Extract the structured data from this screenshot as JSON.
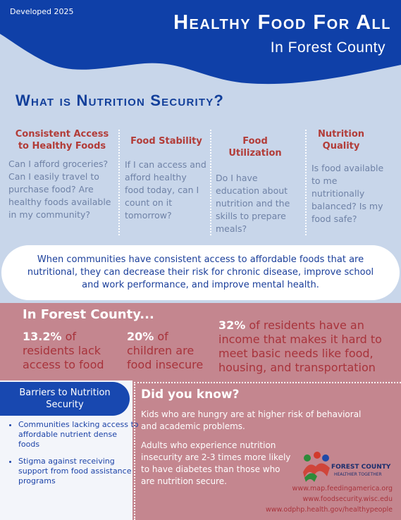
{
  "header": {
    "tag": "Developed 2025",
    "title": "Healthy Food For All",
    "subtitle": "In Forest County"
  },
  "nutrition_security": {
    "heading": "What is Nutrition Security?",
    "columns": [
      {
        "heading": "Consistent Access to Healthy Foods",
        "text": "Can I afford groceries? Can I easily travel to purchase food? Are healthy foods available in my community?"
      },
      {
        "heading": "Food Stability",
        "text": "If I can access and afford healthy food today, can I count on it tomorrow?"
      },
      {
        "heading": "Food Utilization",
        "text": "Do I have education about nutrition and the skills to prepare meals?"
      },
      {
        "heading": "Nutrition Quality",
        "text": "Is food available to me nutritionally balanced? Is my food safe?"
      }
    ]
  },
  "callout": "When communities have consistent access to affordable foods that are nutritional, they can decrease their risk for chronic disease, improve school and work performance, and improve mental health.",
  "county": {
    "heading": "In Forest County...",
    "stats": [
      {
        "value": "13.2%",
        "text": "of residents lack access to food"
      },
      {
        "value": "20%",
        "text": "of children are food insecure"
      },
      {
        "value": "32%",
        "text": "of residents have an income that makes it hard to meet basic needs like food, housing, and transportation"
      }
    ]
  },
  "barriers": {
    "heading": "Barriers to Nutrition Security",
    "items": [
      "Communities lacking access to affordable nutrient dense foods",
      "Stigma against receiving support from food assistance programs"
    ]
  },
  "did_you_know": {
    "heading": "Did you know?",
    "facts": [
      "Kids who are hungry are at higher risk of behavioral and academic problems.",
      "Adults who experience nutrition insecurity are 2-3 times more likely to have diabetes than those who are nutrition secure."
    ]
  },
  "logo": {
    "name": "FOREST COUNTY",
    "tagline": "HEALTHIER TOGETHER"
  },
  "sources": [
    "www.map.feedingamerica.org",
    "www.foodsecurity.wisc.edu",
    "www.odphp.health.gov/healthypeople"
  ]
}
